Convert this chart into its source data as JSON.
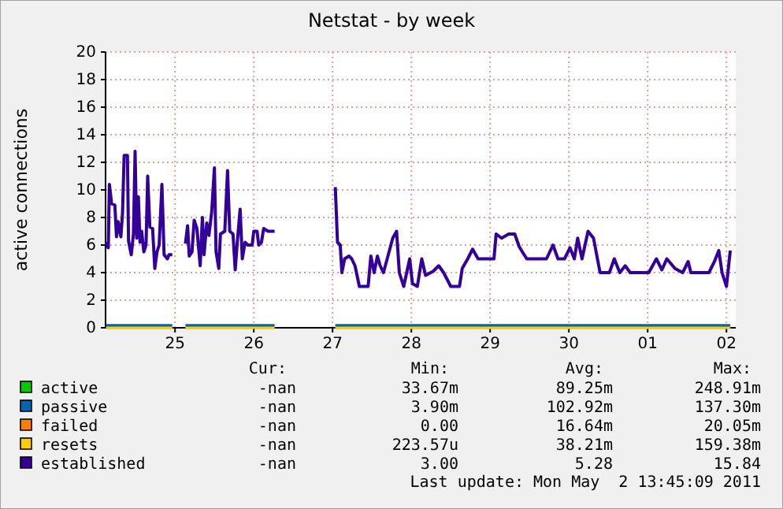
{
  "chart_data": {
    "type": "line",
    "title": "Netstat - by week",
    "ylabel": "active connections",
    "xlim": [
      "2011-04-24T02:50",
      "2011-05-02T02:50"
    ],
    "xticks": [
      {
        "value": "2011-04-25",
        "label": "25"
      },
      {
        "value": "2011-04-26",
        "label": "26"
      },
      {
        "value": "2011-04-27",
        "label": "27"
      },
      {
        "value": "2011-04-28",
        "label": "28"
      },
      {
        "value": "2011-04-29",
        "label": "29"
      },
      {
        "value": "2011-04-30",
        "label": "30"
      },
      {
        "value": "2011-05-01",
        "label": "01"
      },
      {
        "value": "2011-05-02",
        "label": "02"
      }
    ],
    "ylim": [
      0,
      20
    ],
    "yticks": [
      0,
      2,
      4,
      6,
      8,
      10,
      12,
      14,
      16,
      18,
      20
    ],
    "grid": true,
    "legend": "bottom",
    "series": [
      {
        "name": "active",
        "color": "#00cc00"
      },
      {
        "name": "passive",
        "color": "#0066b3",
        "x": [
          "2011-04-24T03:00",
          "2011-04-24T23:10",
          "2011-04-25T01:00",
          "2011-04-25T03:10",
          "2011-04-26T06:20",
          "2011-04-26T15:00",
          "2011-04-27T00:50",
          "2011-05-02T01:10"
        ],
        "values": [
          0.1,
          0.1,
          null,
          0.1,
          0.1,
          null,
          0.1,
          0.1
        ]
      },
      {
        "name": "failed",
        "color": "#ff8000"
      },
      {
        "name": "resets",
        "color": "#ffcc00",
        "x": [
          "2011-04-24T03:00",
          "2011-04-24T23:10",
          "2011-04-25T01:00",
          "2011-04-25T03:10",
          "2011-04-26T06:20",
          "2011-04-26T15:00",
          "2011-04-27T00:50",
          "2011-05-02T01:10"
        ],
        "values": [
          0,
          0,
          null,
          0,
          0,
          null,
          0,
          0
        ]
      },
      {
        "name": "established",
        "color": "#330099",
        "x": [
          "2011-04-24T03:00",
          "2011-04-24T03:40",
          "2011-04-24T04:00",
          "2011-04-24T04:40",
          "2011-04-24T05:40",
          "2011-04-24T06:10",
          "2011-04-24T06:40",
          "2011-04-24T07:30",
          "2011-04-24T08:00",
          "2011-04-24T08:30",
          "2011-04-24T09:30",
          "2011-04-24T09:50",
          "2011-04-24T10:40",
          "2011-04-24T11:20",
          "2011-04-24T11:50",
          "2011-04-24T12:20",
          "2011-04-24T12:50",
          "2011-04-24T13:20",
          "2011-04-24T13:50",
          "2011-04-24T14:30",
          "2011-04-24T15:10",
          "2011-04-24T15:40",
          "2011-04-24T16:20",
          "2011-04-24T17:10",
          "2011-04-24T17:50",
          "2011-04-24T18:30",
          "2011-04-24T19:10",
          "2011-04-24T20:00",
          "2011-04-24T20:40",
          "2011-04-24T21:40",
          "2011-04-24T22:10",
          "2011-04-24T23:10",
          "2011-04-25T01:00",
          "2011-04-25T03:10",
          "2011-04-25T03:50",
          "2011-04-25T04:20",
          "2011-04-25T05:10",
          "2011-04-25T05:50",
          "2011-04-25T06:40",
          "2011-04-25T07:40",
          "2011-04-25T08:20",
          "2011-04-25T08:50",
          "2011-04-25T09:40",
          "2011-04-25T10:20",
          "2011-04-25T11:10",
          "2011-04-25T12:00",
          "2011-04-25T12:30",
          "2011-04-25T13:20",
          "2011-04-25T13:50",
          "2011-04-25T15:10",
          "2011-04-25T16:00",
          "2011-04-25T16:40",
          "2011-04-25T17:40",
          "2011-04-25T18:20",
          "2011-04-25T19:00",
          "2011-04-25T19:50",
          "2011-04-25T20:30",
          "2011-04-25T21:20",
          "2011-04-25T22:10",
          "2011-04-25T23:30",
          "2011-04-26T00:00",
          "2011-04-26T01:00",
          "2011-04-26T01:30",
          "2011-04-26T02:20",
          "2011-04-26T03:00",
          "2011-04-26T04:20",
          "2011-04-26T06:20",
          "2011-04-26T15:00",
          "2011-04-27T00:50",
          "2011-04-27T01:30",
          "2011-04-27T02:20",
          "2011-04-27T02:50",
          "2011-04-27T03:40",
          "2011-04-27T05:00",
          "2011-04-27T05:50",
          "2011-04-27T06:50",
          "2011-04-27T08:10",
          "2011-04-27T10:50",
          "2011-04-27T11:40",
          "2011-04-27T12:40",
          "2011-04-27T13:40",
          "2011-04-27T14:30",
          "2011-04-27T15:30",
          "2011-04-27T18:20",
          "2011-04-27T19:30",
          "2011-04-27T20:20",
          "2011-04-27T21:40",
          "2011-04-27T23:30",
          "2011-04-28T00:20",
          "2011-04-28T01:50",
          "2011-04-28T03:10",
          "2011-04-28T04:20",
          "2011-04-28T06:40",
          "2011-04-28T08:20",
          "2011-04-28T09:50",
          "2011-04-28T12:00",
          "2011-04-28T14:40",
          "2011-04-28T15:30",
          "2011-04-28T17:10",
          "2011-04-28T18:40",
          "2011-04-28T20:20",
          "2011-04-29T01:10",
          "2011-04-29T01:50",
          "2011-04-29T03:30",
          "2011-04-29T05:40",
          "2011-04-29T07:30",
          "2011-04-29T08:50",
          "2011-04-29T09:50",
          "2011-04-29T11:10",
          "2011-04-29T17:10",
          "2011-04-29T19:10",
          "2011-04-29T20:40",
          "2011-04-29T22:40",
          "2011-04-30T00:20",
          "2011-04-30T01:40",
          "2011-04-30T02:40",
          "2011-04-30T04:00",
          "2011-04-30T05:50",
          "2011-04-30T07:30",
          "2011-04-30T09:30",
          "2011-04-30T12:20",
          "2011-04-30T13:50",
          "2011-04-30T15:30",
          "2011-04-30T17:10",
          "2011-04-30T18:40",
          "2011-05-01T00:20",
          "2011-05-01T02:40",
          "2011-05-01T04:20",
          "2011-05-01T05:50",
          "2011-05-01T08:20",
          "2011-05-01T10:40",
          "2011-05-01T12:20",
          "2011-05-01T13:10",
          "2011-05-01T18:40",
          "2011-05-01T20:20",
          "2011-05-01T21:40",
          "2011-05-01T22:40",
          "2011-05-02T00:00",
          "2011-05-02T01:10"
        ],
        "values": [
          6.2,
          5.8,
          10.4,
          9,
          8.9,
          6.6,
          7.7,
          6.6,
          8.3,
          12.5,
          12.5,
          6.3,
          5.3,
          6.8,
          12.8,
          6.5,
          9.5,
          6.2,
          7,
          5.5,
          6,
          11,
          7.3,
          7.2,
          4.3,
          5.5,
          6,
          10.4,
          5.3,
          5,
          5.3,
          5.3,
          null,
          6.1,
          7.4,
          5.2,
          5.5,
          7.8,
          7.2,
          4.5,
          8,
          5.3,
          7.6,
          6.7,
          8.4,
          11.6,
          5.5,
          4.3,
          6.8,
          7,
          11.4,
          7,
          6.8,
          4.2,
          6.3,
          8.6,
          5,
          6.2,
          6,
          6,
          7,
          7,
          6,
          6.2,
          7.2,
          7,
          7,
          null,
          10.2,
          6.2,
          6,
          4,
          5,
          5.2,
          5,
          4.5,
          3,
          3,
          5.2,
          4,
          5.2,
          4.5,
          4,
          6.5,
          7,
          4,
          3,
          5,
          3.2,
          3,
          5,
          3.8,
          4.1,
          4.5,
          4,
          3,
          3,
          4.3,
          5,
          5.7,
          5,
          5,
          6.8,
          6.5,
          6.8,
          6.8,
          5.9,
          5.5,
          5,
          5,
          6,
          5,
          5,
          5.8,
          5,
          6.5,
          5,
          7,
          6.5,
          4,
          4,
          5,
          4,
          4.5,
          4,
          4,
          5,
          4.2,
          5,
          4.3,
          4,
          4.8,
          4,
          4,
          4.8,
          5.6,
          4,
          3,
          5.6
        ]
      }
    ],
    "annotations": [
      "Cur:",
      "Min:",
      "Avg:",
      "Max:",
      "-nan",
      "33.67m",
      "89.25m",
      "248.91m",
      "-nan",
      "3.90m",
      "102.92m",
      "137.30m",
      "-nan",
      "0.00",
      "16.64m",
      "20.05m",
      "-nan",
      "223.57u",
      "38.21m",
      "159.38m",
      "-nan",
      "3.00",
      "5.28",
      "15.84",
      "Last update: Mon May  2 13:45:09 2011"
    ]
  }
}
